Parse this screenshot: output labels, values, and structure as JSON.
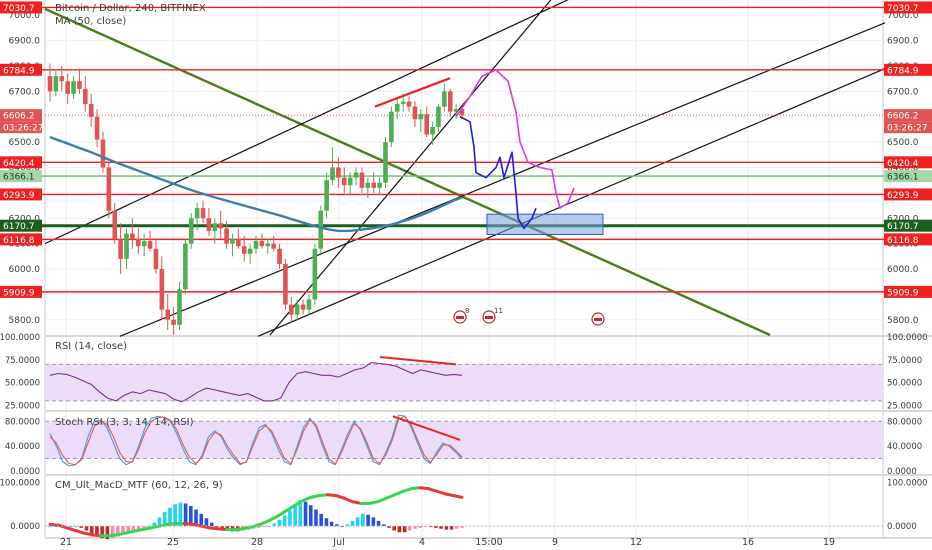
{
  "header": {
    "symbol_title": "Bitcoin / Dollar, 240, BITFINEX",
    "ma_label": "MA (50, close)",
    "rsi_label": "RSI (14, close)",
    "stoch_label": "Stoch RSI (3, 3, 14, 14, RSI)",
    "macd_label": "CM_Ult_MacD_MTF (60, 12, 26, 9)"
  },
  "colors": {
    "up": "#4caf50",
    "down": "#e05353",
    "ma": "#3d7fa6",
    "red_level": "#ee2020",
    "dark_green_level": "#1b5e20",
    "trend_green": "#4a7c1a",
    "channel": "#111111",
    "projection_magenta": "#e533e5",
    "projection_blue": "#1e1ed8",
    "rsi_line": "#7b2d8e",
    "stoch_k": "#3aa0e8",
    "stoch_d": "#e85a4a",
    "band_fill": "#ecdcf7"
  },
  "chart_data": [
    {
      "type": "candlestick",
      "pane": "price",
      "ylim": [
        5740,
        7060
      ],
      "x_tick_labels": [
        "21",
        "25",
        "28",
        "Jul",
        "4",
        "15:00",
        "9",
        "12",
        "16",
        "19"
      ],
      "y_tick_labels": [
        "7000.0",
        "6900.0",
        "6800.0",
        "6700.0",
        "6600.0",
        "6500.0",
        "6400.0",
        "6300.0",
        "6200.0",
        "6100.0",
        "6000.0",
        "5900.0",
        "5800.0"
      ],
      "y_ticks": [
        7000,
        6900,
        6800,
        6700,
        6600,
        6500,
        6400,
        6300,
        6200,
        6100,
        6000,
        5900,
        5800
      ],
      "candles_ohlc": [
        [
          6760,
          6810,
          6660,
          6700
        ],
        [
          6700,
          6780,
          6680,
          6760
        ],
        [
          6760,
          6800,
          6700,
          6740
        ],
        [
          6740,
          6770,
          6650,
          6690
        ],
        [
          6690,
          6760,
          6670,
          6740
        ],
        [
          6740,
          6790,
          6690,
          6710
        ],
        [
          6710,
          6760,
          6620,
          6650
        ],
        [
          6650,
          6690,
          6560,
          6600
        ],
        [
          6600,
          6630,
          6480,
          6510
        ],
        [
          6510,
          6540,
          6380,
          6400
        ],
        [
          6400,
          6420,
          6200,
          6230
        ],
        [
          6230,
          6260,
          6100,
          6120
        ],
        [
          6120,
          6180,
          5980,
          6040
        ],
        [
          6040,
          6160,
          6000,
          6140
        ],
        [
          6140,
          6200,
          6080,
          6120
        ],
        [
          6120,
          6160,
          6060,
          6090
        ],
        [
          6090,
          6140,
          6050,
          6110
        ],
        [
          6110,
          6150,
          6070,
          6080
        ],
        [
          6080,
          6120,
          5980,
          6000
        ],
        [
          6000,
          6050,
          5800,
          5840
        ],
        [
          5840,
          5900,
          5760,
          5800
        ],
        [
          5800,
          5850,
          5740,
          5780
        ],
        [
          5780,
          5950,
          5760,
          5920
        ],
        [
          5920,
          6120,
          5900,
          6100
        ],
        [
          6100,
          6220,
          6080,
          6200
        ],
        [
          6200,
          6260,
          6150,
          6240
        ],
        [
          6240,
          6270,
          6180,
          6200
        ],
        [
          6200,
          6240,
          6130,
          6150
        ],
        [
          6150,
          6200,
          6100,
          6180
        ],
        [
          6180,
          6230,
          6120,
          6160
        ],
        [
          6160,
          6190,
          6080,
          6100
        ],
        [
          6100,
          6140,
          6050,
          6120
        ],
        [
          6120,
          6160,
          6080,
          6090
        ],
        [
          6090,
          6130,
          6030,
          6060
        ],
        [
          6060,
          6100,
          6020,
          6080
        ],
        [
          6080,
          6130,
          6060,
          6110
        ],
        [
          6110,
          6140,
          6080,
          6090
        ],
        [
          6090,
          6120,
          6060,
          6100
        ],
        [
          6100,
          6130,
          6070,
          6080
        ],
        [
          6080,
          6100,
          6000,
          6020
        ],
        [
          6020,
          6040,
          5840,
          5860
        ],
        [
          5860,
          5890,
          5790,
          5820
        ],
        [
          5820,
          5880,
          5800,
          5860
        ],
        [
          5860,
          5880,
          5820,
          5840
        ],
        [
          5840,
          5900,
          5820,
          5880
        ],
        [
          5880,
          6100,
          5860,
          6080
        ],
        [
          6080,
          6250,
          6060,
          6230
        ],
        [
          6230,
          6380,
          6200,
          6350
        ],
        [
          6350,
          6480,
          6330,
          6400
        ],
        [
          6400,
          6440,
          6320,
          6360
        ],
        [
          6360,
          6400,
          6300,
          6330
        ],
        [
          6330,
          6380,
          6290,
          6360
        ],
        [
          6360,
          6400,
          6330,
          6380
        ],
        [
          6380,
          6400,
          6300,
          6320
        ],
        [
          6320,
          6360,
          6280,
          6340
        ],
        [
          6340,
          6380,
          6300,
          6320
        ],
        [
          6320,
          6360,
          6290,
          6340
        ],
        [
          6340,
          6520,
          6320,
          6500
        ],
        [
          6500,
          6640,
          6480,
          6620
        ],
        [
          6620,
          6670,
          6590,
          6650
        ],
        [
          6650,
          6690,
          6620,
          6660
        ],
        [
          6660,
          6680,
          6620,
          6640
        ],
        [
          6640,
          6660,
          6560,
          6590
        ],
        [
          6590,
          6630,
          6540,
          6610
        ],
        [
          6610,
          6640,
          6520,
          6530
        ],
        [
          6530,
          6580,
          6490,
          6560
        ],
        [
          6560,
          6650,
          6540,
          6640
        ],
        [
          6640,
          6730,
          6620,
          6700
        ],
        [
          6700,
          6710,
          6600,
          6620
        ],
        [
          6620,
          6650,
          6590,
          6630
        ],
        [
          6630,
          6640,
          6590,
          6606
        ]
      ],
      "ma_50": [
        6520,
        6508,
        6496,
        6484,
        6472,
        6460,
        6447,
        6433,
        6420,
        6408,
        6396,
        6384,
        6372,
        6360,
        6348,
        6336,
        6324,
        6313,
        6302,
        6292,
        6282,
        6273,
        6264,
        6255,
        6246,
        6237,
        6228,
        6219,
        6210,
        6200,
        6190,
        6180,
        6170,
        6162,
        6155,
        6150,
        6150,
        6152,
        6156,
        6160,
        6165,
        6172,
        6180,
        6190,
        6200,
        6212,
        6225,
        6240,
        6255,
        6270,
        6282
      ],
      "horizontal_levels": [
        {
          "value": 7030.7,
          "label": "7030.7",
          "color": "red"
        },
        {
          "value": 6784.9,
          "label": "6784.9",
          "color": "red"
        },
        {
          "value": 6606.2,
          "label": "6606.2",
          "color": "current"
        },
        {
          "value": 6420.4,
          "label": "6420.4",
          "color": "red"
        },
        {
          "value": 6366.1,
          "label": "6366.1",
          "color": "green"
        },
        {
          "value": 6293.9,
          "label": "6293.9",
          "color": "red"
        },
        {
          "value": 6170.7,
          "label": "6170.7",
          "color": "dark-green"
        },
        {
          "value": 6116.8,
          "label": "6116.8",
          "color": "red"
        },
        {
          "value": 5909.9,
          "label": "5909.9",
          "color": "red"
        }
      ],
      "countdown_label": "03:26:27",
      "events_label": [
        "8",
        "11"
      ]
    },
    {
      "type": "line",
      "pane": "rsi",
      "ylim": [
        20,
        100
      ],
      "y_tick_labels": [
        "100.0000",
        "75.0000",
        "50.0000",
        "25.0000"
      ],
      "y_ticks": [
        100,
        75,
        50,
        25
      ],
      "band": [
        30,
        70
      ],
      "values": [
        58,
        60,
        59,
        56,
        52,
        48,
        40,
        33,
        30,
        36,
        40,
        38,
        42,
        40,
        38,
        32,
        29,
        34,
        40,
        44,
        42,
        40,
        38,
        36,
        38,
        34,
        30,
        30,
        33,
        50,
        60,
        62,
        60,
        58,
        58,
        56,
        60,
        64,
        66,
        72,
        71,
        70,
        68,
        64,
        60,
        64,
        62,
        60,
        58,
        59,
        58
      ]
    },
    {
      "type": "line",
      "pane": "stoch_rsi",
      "ylim": [
        -5,
        95
      ],
      "y_tick_labels": [
        "80.0000",
        "40.0000",
        "0.0000"
      ],
      "y_ticks": [
        80,
        40,
        0
      ],
      "band": [
        20,
        80
      ],
      "series": [
        {
          "values": [
            60,
            40,
            15,
            8,
            10,
            20,
            55,
            80,
            82,
            70,
            45,
            20,
            10,
            15,
            40,
            70,
            85,
            88,
            86,
            80,
            60,
            35,
            15,
            10,
            25,
            55,
            65,
            55,
            35,
            20,
            10,
            15,
            45,
            70,
            75,
            60,
            35,
            15,
            10,
            40,
            70,
            85,
            70,
            40,
            15,
            10,
            35,
            60,
            80,
            65,
            40,
            15,
            10,
            30,
            55,
            90,
            88,
            70,
            45,
            20,
            12,
            30,
            45,
            40,
            30,
            20
          ]
        },
        {
          "values": [
            55,
            45,
            25,
            12,
            10,
            18,
            45,
            72,
            80,
            75,
            55,
            30,
            15,
            14,
            35,
            62,
            80,
            86,
            87,
            82,
            66,
            42,
            22,
            12,
            22,
            48,
            62,
            58,
            40,
            25,
            12,
            14,
            40,
            64,
            73,
            64,
            42,
            20,
            12,
            35,
            64,
            82,
            74,
            46,
            20,
            11,
            30,
            55,
            76,
            68,
            46,
            20,
            12,
            26,
            50,
            84,
            88,
            74,
            50,
            26,
            14,
            26,
            42,
            42,
            33,
            22
          ]
        }
      ]
    },
    {
      "type": "bar",
      "pane": "macd",
      "ylim": [
        -25,
        115
      ],
      "y_tick_labels": [
        "100.0000",
        "0.0000"
      ],
      "y_ticks": [
        100,
        0
      ],
      "values": [
        0,
        0,
        0,
        0,
        0,
        0,
        -4,
        -10,
        -18,
        -24,
        -28,
        -30,
        -28,
        -24,
        -20,
        -16,
        -12,
        -8,
        -4,
        0,
        8,
        20,
        32,
        42,
        50,
        54,
        52,
        46,
        38,
        28,
        18,
        8,
        -2,
        -6,
        -10,
        -12,
        -12,
        -10,
        -8,
        -6,
        -4,
        -2,
        0,
        6,
        14,
        24,
        36,
        50,
        60,
        56,
        48,
        38,
        28,
        18,
        10,
        4,
        0,
        4,
        12,
        20,
        28,
        26,
        20,
        12,
        4,
        -4,
        -10,
        -14,
        -14,
        -10,
        -6,
        -4,
        -2,
        -2,
        -4,
        -6,
        -8,
        -8,
        -6,
        -4
      ],
      "signal": [
        4,
        2,
        -4,
        -10,
        -16,
        -20,
        -22,
        -22,
        -20,
        -16,
        -12,
        -8,
        -4,
        0,
        4,
        6,
        6,
        4,
        0,
        -4,
        -6,
        -8,
        -8,
        -6,
        -2,
        4,
        12,
        22,
        34,
        46,
        58,
        66,
        70,
        72,
        70,
        64,
        56,
        52,
        52,
        56,
        64,
        72,
        80,
        86,
        88,
        86,
        80,
        74,
        70,
        66
      ]
    }
  ],
  "time_axis": {
    "labels": [
      "21",
      "25",
      "28",
      "Jul",
      "4",
      "15:00",
      "9",
      "12",
      "16",
      "19"
    ]
  }
}
